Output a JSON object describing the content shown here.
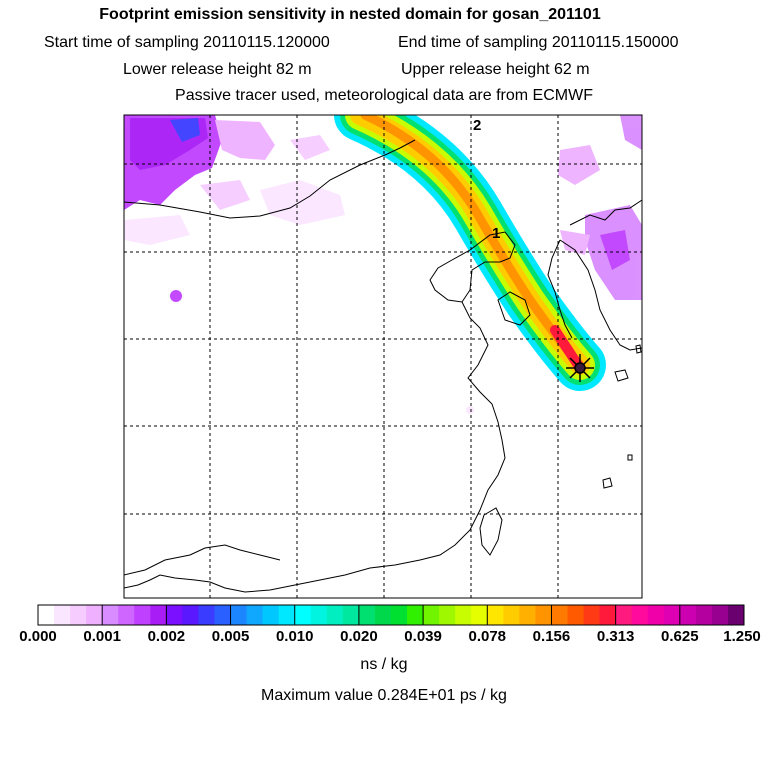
{
  "header": {
    "title": "Footprint emission sensitivity in nested domain for gosan_201101",
    "start_label": "Start time of sampling 20110115.120000",
    "end_label": "End time of sampling 20110115.150000",
    "lower_label": "Lower release height   82 m",
    "upper_label": "Upper release height   62 m",
    "tracer_label": "Passive tracer used, meteorological data are from ECMWF"
  },
  "map": {
    "trajectory_labels": [
      "2",
      "1"
    ],
    "receptor_marker": "star-x",
    "grid": true
  },
  "colorbar": {
    "ticks": [
      "0.000",
      "0.001",
      "0.002",
      "0.005",
      "0.010",
      "0.020",
      "0.039",
      "0.078",
      "0.156",
      "0.313",
      "0.625",
      "1.250"
    ],
    "colors": [
      "#ffffff",
      "#fbe6ff",
      "#f6ccff",
      "#efb0ff",
      "#d98cff",
      "#cf66ff",
      "#c040ff",
      "#a81cf6",
      "#7a10ff",
      "#5a18ff",
      "#3a3cff",
      "#2a60ff",
      "#1c86ff",
      "#10a8ff",
      "#00c8ff",
      "#00e8ff",
      "#00ffff",
      "#00f4e0",
      "#00eec0",
      "#00e8a0",
      "#00e070",
      "#00d84c",
      "#00e030",
      "#30f000",
      "#70f400",
      "#a0f800",
      "#c8fc00",
      "#e6ff00",
      "#ffe600",
      "#ffcc00",
      "#ffb000",
      "#ff9400",
      "#ff7a00",
      "#ff5a00",
      "#ff3a14",
      "#ff1a3c",
      "#ff1a80",
      "#ff0a9c",
      "#f000a8",
      "#e000b4",
      "#cc00b0",
      "#b4009e",
      "#980090",
      "#6a0070"
    ],
    "units": "ns / kg",
    "max_value_label": "Maximum value  0.284E+01 ps / kg"
  }
}
